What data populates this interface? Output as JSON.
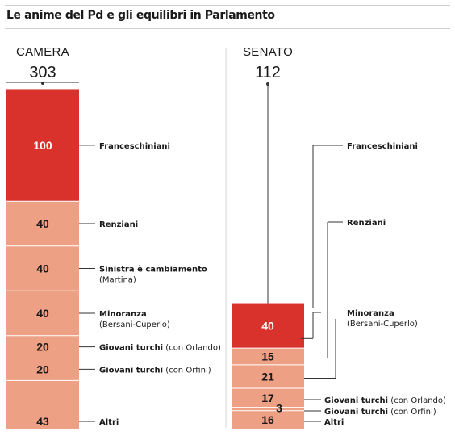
{
  "title": "Le anime del Pd e gli equilibri in Parlamento",
  "chart_data": [
    {
      "type": "bar",
      "subtype": "stacked-column",
      "chamber": "CAMERA",
      "total": "303",
      "segments": [
        {
          "value": 100,
          "label": "100",
          "color": "#d9322c",
          "text_color": "#ffffff",
          "label_bold": "Franceschiniani",
          "label_extra": ""
        },
        {
          "value": 40,
          "label": "40",
          "color": "#eea084",
          "text_color": "#1a1a1a",
          "label_bold": "Renziani",
          "label_extra": ""
        },
        {
          "value": 40,
          "label": "40",
          "color": "#eea084",
          "text_color": "#1a1a1a",
          "label_bold": "Sinistra è cambiamento",
          "label_extra": "(Martina)"
        },
        {
          "value": 40,
          "label": "40",
          "color": "#eea084",
          "text_color": "#1a1a1a",
          "label_bold": "Minoranza",
          "label_extra": "(Bersani-Cuperlo)"
        },
        {
          "value": 20,
          "label": "20",
          "color": "#eea084",
          "text_color": "#1a1a1a",
          "label_bold": "Giovani turchi",
          "label_extra": "(con Orlando)"
        },
        {
          "value": 20,
          "label": "20",
          "color": "#eea084",
          "text_color": "#1a1a1a",
          "label_bold": "Giovani turchi",
          "label_extra": "(con Orfini)"
        },
        {
          "value": 43,
          "label": "43",
          "color": "#eea084",
          "text_color": "#1a1a1a",
          "label_bold": "Altri",
          "label_extra": ""
        }
      ]
    },
    {
      "type": "bar",
      "subtype": "stacked-column",
      "chamber": "SENATO",
      "total": "112",
      "segments": [
        {
          "value": 40,
          "label": "40",
          "color": "#d9322c",
          "text_color": "#ffffff",
          "label_bold": "",
          "label_extra": ""
        },
        {
          "value": 15,
          "label": "15",
          "color": "#eea084",
          "text_color": "#1a1a1a",
          "label_bold": "",
          "label_extra": ""
        },
        {
          "value": 21,
          "label": "21",
          "color": "#eea084",
          "text_color": "#1a1a1a",
          "label_bold": "",
          "label_extra": ""
        },
        {
          "value": 17,
          "label": "17",
          "color": "#eea084",
          "text_color": "#1a1a1a",
          "label_bold": "",
          "label_extra": ""
        },
        {
          "value": 3,
          "label": "3",
          "color": "#eea084",
          "text_color": "#1a1a1a",
          "label_bold": "",
          "label_extra": ""
        },
        {
          "value": 16,
          "label": "16",
          "color": "#eea084",
          "text_color": "#1a1a1a",
          "label_bold": "",
          "label_extra": ""
        }
      ],
      "callouts": [
        {
          "target": "total",
          "label_bold": "Franceschiniani",
          "label_extra": ""
        },
        {
          "target": 1,
          "label_bold": "Renziani",
          "label_extra": ""
        },
        {
          "target": 0,
          "label_bold": "Minoranza",
          "label_extra": "(Bersani-Cuperlo)"
        },
        {
          "target": 2,
          "label_bold": "",
          "label_extra": ""
        },
        {
          "target": 3,
          "label_bold": "Giovani turchi",
          "label_extra": "(con Orlando)"
        },
        {
          "target": 4,
          "label_bold": "Giovani turchi",
          "label_extra": "(con Orfini)"
        },
        {
          "target": 5,
          "label_bold": "Altri",
          "label_extra": ""
        }
      ]
    }
  ]
}
